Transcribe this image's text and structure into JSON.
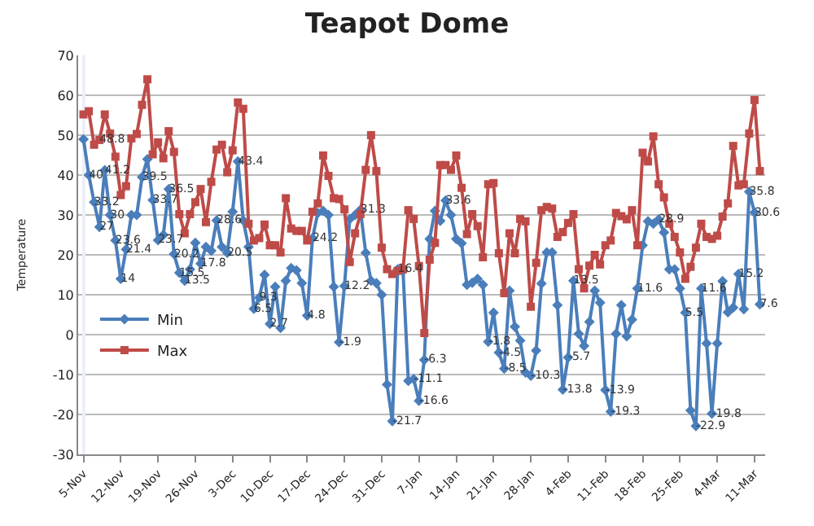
{
  "chart_data": {
    "type": "line",
    "title": "Teapot Dome",
    "ylabel": "Temperature",
    "categories": [
      "5-Nov",
      null,
      null,
      null,
      null,
      null,
      null,
      "12-Nov",
      null,
      null,
      null,
      null,
      null,
      null,
      "19-Nov",
      null,
      null,
      null,
      null,
      null,
      null,
      "26-Nov",
      null,
      null,
      null,
      null,
      null,
      null,
      "3-Dec",
      null,
      null,
      null,
      null,
      null,
      null,
      "10-Dec",
      null,
      null,
      null,
      null,
      null,
      null,
      "17-Dec",
      null,
      null,
      null,
      null,
      null,
      null,
      "24-Dec",
      null,
      null,
      null,
      null,
      null,
      null,
      "31-Dec",
      null,
      null,
      null,
      null,
      null,
      null,
      "7-Jan",
      null,
      null,
      null,
      null,
      null,
      null,
      "14-Jan",
      null,
      null,
      null,
      null,
      null,
      null,
      "21-Jan",
      null,
      null,
      null,
      null,
      null,
      null,
      "28-Jan",
      null,
      null,
      null,
      null,
      null,
      null,
      "4-Feb",
      null,
      null,
      null,
      null,
      null,
      null,
      "11-Feb",
      null,
      null,
      null,
      null,
      null,
      null,
      "18-Feb",
      null,
      null,
      null,
      null,
      null,
      null,
      "25-Feb",
      null,
      null,
      null,
      null,
      null,
      null,
      "4-Mar",
      null,
      null,
      null,
      null,
      null,
      null,
      "11-Mar",
      null
    ],
    "series": [
      {
        "name": "Min",
        "color": "#4a7ebb",
        "marker": "diamond",
        "values": [
          49,
          40,
          33.2,
          27,
          41.2,
          30,
          23.6,
          14,
          21.4,
          30,
          30,
          39.5,
          44,
          33.7,
          23.7,
          25,
          36.5,
          20.2,
          15.5,
          13.5,
          16.4,
          23,
          17.8,
          22,
          21,
          28.6,
          22,
          20.5,
          30.8,
          43.4,
          28.6,
          22,
          6.5,
          9.3,
          15,
          2.7,
          12,
          1.7,
          13.5,
          16.7,
          16.1,
          12.9,
          4.8,
          24.2,
          30.5,
          31,
          30,
          12,
          -1.9,
          12.2,
          29,
          30,
          31.3,
          20.5,
          13.5,
          12.9,
          10,
          -12.5,
          -21.7,
          16.4,
          16,
          -11.6,
          -11.1,
          -16.6,
          -6.3,
          24,
          31,
          28.5,
          33.6,
          30,
          24,
          22.9,
          12.5,
          13,
          14,
          12.5,
          -1.8,
          5.5,
          -4.5,
          -8.5,
          11,
          2,
          -1.5,
          -9.5,
          -10.3,
          -4,
          12.8,
          20.6,
          20.6,
          7.4,
          -13.8,
          -5.7,
          13.5,
          0.2,
          -2.8,
          3.2,
          11,
          8,
          -13.9,
          -19.3,
          0.2,
          7.4,
          -0.4,
          3.8,
          11.6,
          22.4,
          28.4,
          27.8,
          28.9,
          25.6,
          16.4,
          16.4,
          11.6,
          5.5,
          -19,
          -22.9,
          11.6,
          -2.2,
          -19.8,
          -2.2,
          13.4,
          5.6,
          6.8,
          15.2,
          6.4,
          35.8,
          30.6,
          7.6
        ],
        "value_labels": [
          null,
          "40",
          "33.2",
          "27",
          "41.2",
          "30",
          "23.6",
          "14",
          "21.4",
          null,
          null,
          "39.5",
          null,
          "33.7",
          "23.7",
          null,
          "36.5",
          "20.2",
          "15.5",
          "13.5",
          null,
          null,
          "17.8",
          null,
          null,
          "28.6",
          null,
          "20.5",
          null,
          "43.4",
          null,
          null,
          "6.5",
          "9.3",
          null,
          "2.7",
          null,
          null,
          null,
          null,
          null,
          null,
          "4.8",
          "24.2",
          null,
          null,
          null,
          null,
          "-1.9",
          "12.2",
          null,
          null,
          "31.3",
          null,
          null,
          null,
          null,
          null,
          "-21.7",
          "16.4",
          null,
          null,
          "-11.1",
          "-16.6",
          "-6.3",
          null,
          null,
          null,
          "33.6",
          null,
          null,
          null,
          null,
          null,
          null,
          null,
          "-1.8",
          null,
          "-4.5",
          "-8.5",
          null,
          null,
          null,
          null,
          "-10.3",
          null,
          null,
          null,
          null,
          null,
          "-13.8",
          "-5.7",
          "13.5",
          null,
          null,
          null,
          null,
          null,
          "-13.9",
          "-19.3",
          null,
          null,
          null,
          null,
          "11.6",
          null,
          null,
          null,
          "28.9",
          null,
          null,
          null,
          null,
          "5.5",
          null,
          "-22.9",
          "11.6",
          null,
          "-19.8",
          null,
          null,
          null,
          null,
          "15.2",
          null,
          "35.8",
          "30.6",
          "7.6"
        ]
      },
      {
        "name": "Max",
        "color": "#be4b48",
        "marker": "square",
        "values": [
          55.2,
          56,
          47.6,
          48.8,
          55.2,
          50.4,
          44.6,
          35,
          37.2,
          49.2,
          50.3,
          57.6,
          64,
          45.2,
          48.2,
          44.2,
          51,
          45.8,
          30.2,
          25.4,
          30.2,
          33.2,
          36.5,
          28.2,
          38.3,
          46.4,
          47.6,
          40.7,
          46.2,
          58.2,
          56.6,
          27.8,
          23.6,
          24.2,
          27.6,
          22.4,
          22.4,
          20.6,
          34.2,
          26.6,
          26,
          26,
          23.6,
          30.8,
          32.9,
          44.9,
          39.8,
          34.2,
          34,
          31.4,
          18.2,
          25.4,
          30.2,
          41.3,
          50,
          41,
          21.8,
          16.4,
          15.2,
          16,
          16.4,
          31.2,
          29,
          17.2,
          0.4,
          18.8,
          23,
          42.5,
          42.5,
          41.3,
          44.9,
          36.8,
          25.2,
          30.2,
          27.2,
          19.4,
          37.7,
          38,
          20.4,
          10.4,
          25.4,
          20.4,
          29,
          28.4,
          7,
          18,
          31.2,
          32,
          31.6,
          24.5,
          25.7,
          28,
          30.2,
          16.4,
          11.6,
          17.3,
          20,
          17.6,
          22.4,
          23.6,
          30.5,
          29.7,
          28.9,
          31.2,
          22.4,
          45.6,
          43.4,
          49.7,
          37.7,
          34.4,
          27.8,
          24.5,
          20.6,
          14,
          17,
          21.8,
          27.8,
          24.5,
          24,
          24.8,
          29.6,
          32.9,
          47.3,
          37.4,
          37.7,
          50.4,
          58.8,
          41
        ],
        "value_labels": [
          null,
          null,
          null,
          "48.8",
          null,
          null,
          null,
          null,
          null,
          null,
          null,
          null,
          null,
          null,
          null,
          null,
          null,
          null,
          null,
          null,
          null,
          null,
          null,
          null,
          null,
          null,
          null,
          null,
          null,
          null,
          null,
          null,
          null,
          null,
          null,
          null,
          null,
          null,
          null,
          null,
          null,
          null,
          null,
          null,
          null,
          null,
          null,
          null,
          null,
          null,
          null,
          null,
          null,
          null,
          null,
          null,
          null,
          null,
          null,
          null,
          null,
          null,
          null,
          null,
          null,
          null,
          null,
          null,
          null,
          null,
          null,
          null,
          null,
          null,
          null,
          null,
          null,
          null,
          null,
          null,
          null,
          null,
          null,
          null,
          null,
          null,
          null,
          null,
          null,
          null,
          null,
          null,
          null,
          null,
          null,
          null,
          null,
          null,
          null,
          null,
          null,
          null,
          null,
          null,
          null,
          null,
          null,
          null,
          null,
          null,
          null,
          null,
          null,
          null,
          null,
          null,
          null,
          null,
          null,
          null,
          null,
          null,
          null,
          null,
          null,
          null,
          null,
          null
        ]
      }
    ],
    "ylim": [
      -30,
      70
    ],
    "yticks": [
      -30,
      -20,
      -10,
      0,
      10,
      20,
      30,
      40,
      50,
      60,
      70
    ],
    "grid": "y",
    "legend": "left",
    "line_style": "solid"
  }
}
